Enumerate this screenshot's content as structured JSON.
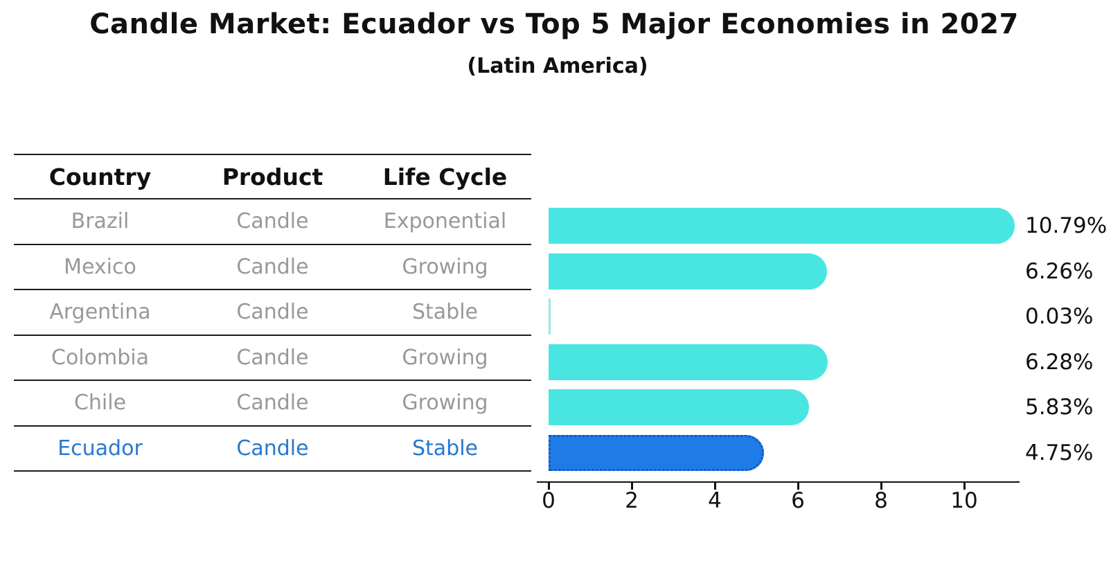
{
  "title": "Candle Market: Ecuador vs Top 5 Major Economies in 2027",
  "subtitle": "(Latin America)",
  "table": {
    "headers": [
      "Country",
      "Product",
      "Life Cycle"
    ],
    "rows": [
      {
        "country": "Brazil",
        "product": "Candle",
        "life_cycle": "Exponential",
        "highlight": false
      },
      {
        "country": "Mexico",
        "product": "Candle",
        "life_cycle": "Growing",
        "highlight": false
      },
      {
        "country": "Argentina",
        "product": "Candle",
        "life_cycle": "Stable",
        "highlight": false
      },
      {
        "country": "Colombia",
        "product": "Candle",
        "life_cycle": "Growing",
        "highlight": false
      },
      {
        "country": "Chile",
        "product": "Candle",
        "life_cycle": "Growing",
        "highlight": false
      },
      {
        "country": "Ecuador",
        "product": "Candle",
        "life_cycle": "Stable",
        "highlight": true
      }
    ]
  },
  "chart_data": {
    "type": "bar",
    "orientation": "horizontal",
    "title": "Candle Market: Ecuador vs Top 5 Major Economies in 2027",
    "subtitle": "(Latin America)",
    "categories": [
      "Brazil",
      "Mexico",
      "Argentina",
      "Colombia",
      "Chile",
      "Ecuador"
    ],
    "values": [
      10.79,
      6.26,
      0.03,
      6.28,
      5.83,
      4.75
    ],
    "value_labels": [
      "10.79%",
      "6.26%",
      "0.03%",
      "6.28%",
      "5.83%",
      "4.75%"
    ],
    "x_ticks": [
      0,
      2,
      4,
      6,
      8,
      10
    ],
    "xlim": [
      0,
      11.33
    ],
    "grid": false,
    "legend": "none",
    "highlight_index": 5,
    "colors": {
      "bar": "#49e6e1",
      "bar_tiny": "#90ede9",
      "highlight_bar": "#1f7be6",
      "highlight_border": "#1157c8",
      "body_text": "#989898",
      "highlight_text": "#2878ce",
      "axis_text": "#111111"
    }
  }
}
